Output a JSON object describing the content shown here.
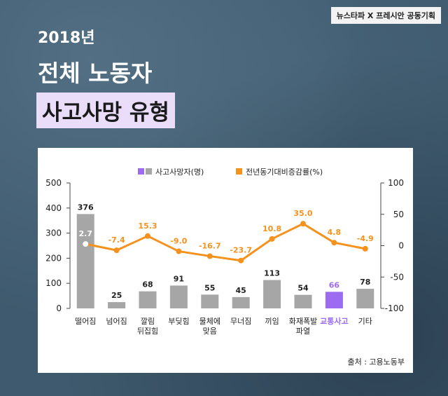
{
  "badge": "뉴스타파 X 프레시안 공동기획",
  "header": {
    "year": "2018년",
    "title": "전체 노동자",
    "subtitle": "사고사망 유형"
  },
  "source": "출처 : 고용노동부",
  "colors": {
    "bar": "#a6a6a6",
    "highlight_bar": "#9b6cf0",
    "line": "#f5921e",
    "first_point": "#ffffff"
  },
  "chart_data": {
    "type": "bar",
    "categories": [
      "떨어짐",
      "넘어짐",
      "깔림\n뒤집힘",
      "부딪힘",
      "물체에\n맞음",
      "무너짐",
      "끼임",
      "화재폭발\n파열",
      "교통사고",
      "기타"
    ],
    "highlight_category": "교통사고",
    "series": [
      {
        "name": "사고사망자(명)",
        "type": "bar",
        "axis": "left",
        "values": [
          376,
          25,
          68,
          91,
          55,
          45,
          113,
          54,
          66,
          78
        ]
      },
      {
        "name": "전년동기대비증감률(%)",
        "type": "line",
        "axis": "right",
        "values": [
          2.7,
          -7.4,
          15.3,
          -9.0,
          -16.7,
          -23.7,
          10.8,
          35.0,
          4.8,
          -4.9
        ],
        "labels": [
          "2.7",
          "-7.4",
          "15.3",
          "-9.0",
          "-16.7",
          "-23.7",
          "10.8",
          "35.0",
          "4.8",
          "-4.9"
        ]
      }
    ],
    "y_left": {
      "min": 0,
      "max": 500,
      "ticks": [
        0,
        100,
        200,
        300,
        400,
        500
      ]
    },
    "y_right": {
      "min": -100,
      "max": 100,
      "ticks": [
        -100,
        -50,
        0,
        50,
        100
      ]
    },
    "legend_position": "top-center",
    "grid": false
  }
}
